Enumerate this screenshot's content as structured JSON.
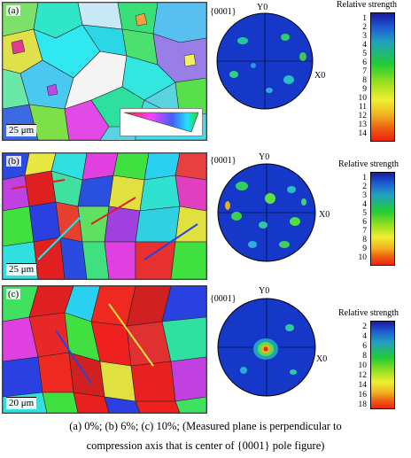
{
  "panels": [
    {
      "label": "(a)",
      "scale_bar": "25 μm",
      "plane": "{0001}",
      "axis_top": "Y0",
      "axis_right": "X0",
      "legend_title": "Relative strength",
      "legend_ticks": [
        "1",
        "2",
        "3",
        "4",
        "5",
        "6",
        "7",
        "8",
        "9",
        "10",
        "11",
        "12",
        "13",
        "14"
      ]
    },
    {
      "label": "(b)",
      "scale_bar": "25 μm",
      "plane": "{0001}",
      "axis_top": "Y0",
      "axis_right": "X0",
      "legend_title": "Relative strength",
      "legend_ticks": [
        "1",
        "2",
        "3",
        "4",
        "5",
        "6",
        "7",
        "8",
        "9",
        "10"
      ]
    },
    {
      "label": "(c)",
      "scale_bar": "20 μm",
      "plane": "{0001}",
      "axis_top": "Y0",
      "axis_right": "X0",
      "legend_title": "Relative strength",
      "legend_ticks": [
        "2",
        "4",
        "6",
        "8",
        "10",
        "12",
        "14",
        "16",
        "18"
      ]
    }
  ],
  "colors": {
    "legend_low": "#1a1aa8",
    "legend_mid": "#22cc33",
    "legend_high": "#ee2211",
    "pole_bg": "#1638c8"
  },
  "caption": {
    "line1": "(a) 0%; (b) 6%; (c) 10%; (Measured plane is perpendicular to",
    "line2": "compression axis that is center of {0001} pole figure)"
  }
}
